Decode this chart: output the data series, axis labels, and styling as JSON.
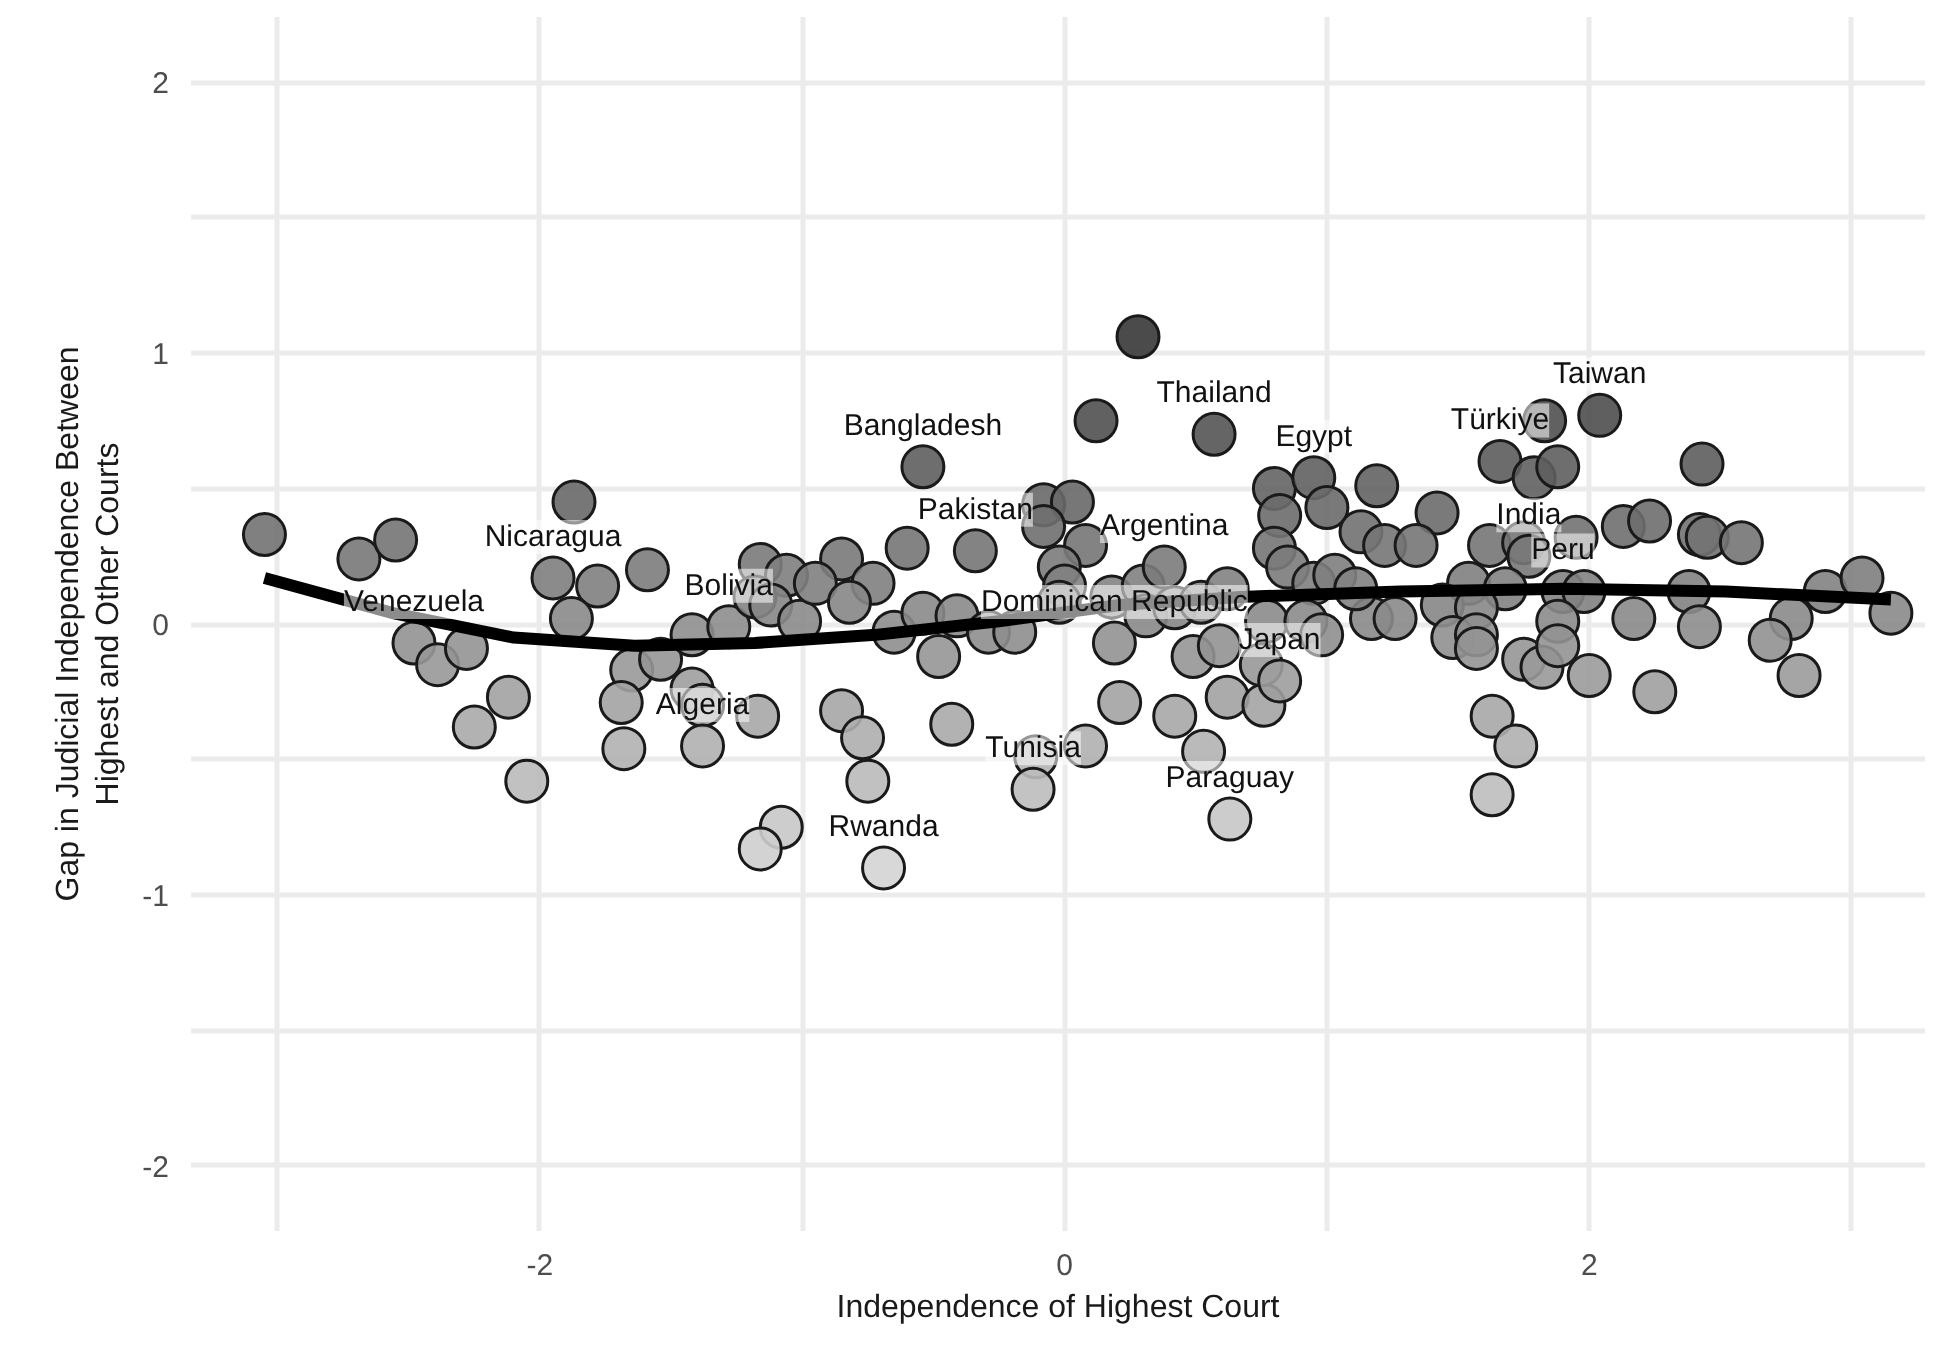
{
  "chart_data": {
    "type": "scatter",
    "xlabel": "Independence of Highest Court",
    "ylabel": "Gap in Judicial Independence Between\nHighest and Other Courts",
    "xlim": [
      -3.33,
      3.28
    ],
    "ylim": [
      -2.24,
      2.24
    ],
    "xticks": [
      {
        "value": -3,
        "label": null
      },
      -2,
      {
        "value": -1,
        "label": null
      },
      0,
      {
        "value": 1,
        "label": null
      },
      2,
      {
        "value": 3,
        "label": null
      }
    ],
    "yticks": [
      -2,
      {
        "value": -1.5,
        "label": null
      },
      -1,
      {
        "value": -0.5,
        "label": null
      },
      0,
      {
        "value": 0.5,
        "label": null
      },
      1,
      {
        "value": 1.5,
        "label": null
      },
      2
    ],
    "grid": true,
    "series": [
      {
        "marker": "circle",
        "x": [
          -3.05,
          -2.69,
          -2.55,
          -1.87,
          -1.95,
          -1.78,
          -1.88,
          -1.59,
          -2.48,
          -2.39,
          -2.28,
          -2.12,
          -2.25,
          -2.05,
          -1.65,
          -1.69,
          -1.54,
          -1.42,
          -1.42,
          -1.38,
          -1.17,
          -1.68,
          -1.38,
          -1.28,
          -1.16,
          -1.06,
          -1.18,
          -1.12,
          -1.01,
          -1.08,
          -1.16,
          0.28,
          0.12,
          0.57,
          -0.54,
          -0.08,
          0.03,
          -0.08,
          0.08,
          -0.02,
          0.0,
          -0.02,
          -0.6,
          -0.34,
          -0.85,
          -0.95,
          -0.73,
          -0.82,
          -0.65,
          -0.54,
          -0.41,
          -0.29,
          -0.19,
          -0.48,
          -0.85,
          -0.77,
          -0.43,
          -0.75,
          -0.69,
          -0.11,
          -0.12,
          0.08,
          0.19,
          0.18,
          0.3,
          0.38,
          0.31,
          0.42,
          0.52,
          0.62,
          0.21,
          0.42,
          0.49,
          0.59,
          0.53,
          0.63,
          0.62,
          0.76,
          0.75,
          0.82,
          0.77,
          0.8,
          0.95,
          1.0,
          0.82,
          0.8,
          0.85,
          0.95,
          1.03,
          0.92,
          0.98,
          1.19,
          1.42,
          1.13,
          1.22,
          1.34,
          1.62,
          1.75,
          1.77,
          1.66,
          1.79,
          1.88,
          1.83,
          2.04,
          2.43,
          1.95,
          2.13,
          2.23,
          2.42,
          2.45,
          2.58,
          1.54,
          1.68,
          1.44,
          1.57,
          1.9,
          1.98,
          2.38,
          1.88,
          2.17,
          2.42,
          2.9,
          3.04,
          3.15,
          2.77,
          2.69,
          2.8,
          1.48,
          1.57,
          1.57,
          1.75,
          1.82,
          1.88,
          2.0,
          2.25,
          1.63,
          1.72,
          1.63,
          1.17,
          1.26,
          1.11
        ],
        "values": [
          0.33,
          0.24,
          0.31,
          0.45,
          0.17,
          0.14,
          0.02,
          0.2,
          -0.07,
          -0.15,
          -0.09,
          -0.27,
          -0.38,
          -0.58,
          -0.17,
          -0.29,
          -0.13,
          -0.04,
          -0.24,
          -0.3,
          -0.34,
          -0.46,
          -0.45,
          -0.01,
          0.22,
          0.18,
          0.1,
          0.07,
          0.01,
          -0.75,
          -0.83,
          1.06,
          0.75,
          0.7,
          0.58,
          0.44,
          0.45,
          0.36,
          0.29,
          0.21,
          0.14,
          0.08,
          0.28,
          0.27,
          0.24,
          0.15,
          0.15,
          0.08,
          -0.03,
          0.04,
          0.03,
          -0.03,
          -0.03,
          -0.12,
          -0.32,
          -0.42,
          -0.37,
          -0.58,
          -0.9,
          -0.49,
          -0.61,
          -0.45,
          -0.07,
          0.1,
          0.14,
          0.21,
          0.03,
          0.06,
          0.08,
          0.13,
          -0.29,
          -0.34,
          -0.12,
          -0.08,
          -0.47,
          -0.72,
          -0.27,
          -0.3,
          -0.15,
          -0.21,
          0.01,
          0.5,
          0.54,
          0.43,
          0.4,
          0.28,
          0.21,
          0.15,
          0.18,
          0.01,
          -0.04,
          0.51,
          0.41,
          0.34,
          0.29,
          0.29,
          0.29,
          0.3,
          0.25,
          0.6,
          0.54,
          0.58,
          0.75,
          0.77,
          0.59,
          0.32,
          0.36,
          0.38,
          0.33,
          0.32,
          0.3,
          0.15,
          0.13,
          0.07,
          0.06,
          0.12,
          0.12,
          0.12,
          0.01,
          0.02,
          -0.01,
          0.12,
          0.17,
          0.04,
          0.02,
          -0.06,
          -0.19,
          -0.05,
          -0.04,
          -0.09,
          -0.13,
          -0.16,
          -0.08,
          -0.19,
          -0.25,
          -0.34,
          -0.45,
          -0.63,
          0.02,
          0.02,
          0.13
        ],
        "colors": [
          "#727272",
          "#787878",
          "#747474",
          "#686868",
          "#7e7e7e",
          "#808080",
          "#8a8a8a",
          "#7c7c7c",
          "#929292",
          "#989898",
          "#939393",
          "#a2a2a2",
          "#aaaaaa",
          "#bababa",
          "#999999",
          "#a3a3a3",
          "#969696",
          "#8f8f8f",
          "#9f9f9f",
          "#a4a4a4",
          "#a7a7a7",
          "#b1b1b1",
          "#b0b0b0",
          "#8d8d8d",
          "#7a7a7a",
          "#7e7e7e",
          "#848484",
          "#868686",
          "#8b8b8b",
          "#c8c8c8",
          "#cecece",
          "#373737",
          "#505050",
          "#545454",
          "#5e5e5e",
          "#696969",
          "#686868",
          "#6f6f6f",
          "#757575",
          "#7b7b7b",
          "#818181",
          "#868686",
          "#767676",
          "#767676",
          "#797979",
          "#808080",
          "#808080",
          "#868686",
          "#8e8e8e",
          "#898989",
          "#8a8a8a",
          "#8e8e8e",
          "#8e8e8e",
          "#969696",
          "#a6a6a6",
          "#aeaeae",
          "#aaaaaa",
          "#bababa",
          "#d4d4d4",
          "#b3b3b3",
          "#bdbdbd",
          "#b0b0b0",
          "#929292",
          "#848484",
          "#818181",
          "#7b7b7b",
          "#8a8a8a",
          "#878787",
          "#868686",
          "#828282",
          "#a3a3a3",
          "#a7a7a7",
          "#969696",
          "#929292",
          "#b2b2b2",
          "#c6c6c6",
          "#a2a2a2",
          "#a4a4a4",
          "#989898",
          "#9d9d9d",
          "#8b8b8b",
          "#646464",
          "#616161",
          "#6a6a6a",
          "#6c6c6c",
          "#767676",
          "#7b7b7b",
          "#808080",
          "#7e7e7e",
          "#8b8b8b",
          "#8f8f8f",
          "#636363",
          "#6b6b6b",
          "#717171",
          "#757575",
          "#757575",
          "#757575",
          "#747474",
          "#787878",
          "#5c5c5c",
          "#616161",
          "#5e5e5e",
          "#505050",
          "#4e4e4e",
          "#5d5d5d",
          "#727272",
          "#6f6f6f",
          "#6e6e6e",
          "#727272",
          "#727272",
          "#747474",
          "#808080",
          "#828282",
          "#868686",
          "#878787",
          "#828282",
          "#828282",
          "#828282",
          "#8b8b8b",
          "#8a8a8a",
          "#8d8d8d",
          "#828282",
          "#7e7e7e",
          "#898989",
          "#8a8a8a",
          "#919191",
          "#9b9b9b",
          "#909090",
          "#8f8f8f",
          "#939393",
          "#969696",
          "#999999",
          "#929292",
          "#9b9b9b",
          "#a0a0a0",
          "#a7a7a7",
          "#b0b0b0",
          "#bebebe",
          "#8a8a8a",
          "#8a8a8a",
          "#828282"
        ]
      },
      {
        "type": "line",
        "color": "#000000",
        "x": [
          -3.05,
          -2.56,
          -2.1,
          -1.64,
          -1.18,
          -0.72,
          -0.25,
          0.21,
          0.67,
          1.28,
          1.9,
          2.52,
          3.15
        ],
        "values": [
          0.17,
          0.04,
          -0.05,
          -0.08,
          -0.07,
          -0.04,
          0.01,
          0.07,
          0.1,
          0.12,
          0.13,
          0.12,
          0.09
        ]
      }
    ],
    "annotations": [
      {
        "text": "Nicaragua",
        "x": -1.95,
        "y": 0.17
      },
      {
        "text": "Venezuela",
        "x": -2.48,
        "y": -0.07
      },
      {
        "text": "Bangladesh",
        "x": -0.54,
        "y": 0.58
      },
      {
        "text": "Pakistan",
        "x": -0.34,
        "y": 0.27
      },
      {
        "text": "Bolivia",
        "x": -1.28,
        "y": -0.01
      },
      {
        "text": "Algeria",
        "x": -1.38,
        "y": -0.45
      },
      {
        "text": "Rwanda",
        "x": -0.69,
        "y": -0.9
      },
      {
        "text": "Tunisia",
        "x": -0.12,
        "y": -0.61
      },
      {
        "text": "Dominican Republic",
        "x": 0.19,
        "y": -0.07
      },
      {
        "text": "Thailand",
        "x": 0.57,
        "y": 0.7
      },
      {
        "text": "Egypt",
        "x": 0.95,
        "y": 0.54
      },
      {
        "text": "Argentina",
        "x": 0.38,
        "y": 0.21
      },
      {
        "text": "Paraguay",
        "x": 0.63,
        "y": -0.72
      },
      {
        "text": "Japan",
        "x": 0.82,
        "y": -0.21
      },
      {
        "text": "Türkiye",
        "x": 1.66,
        "y": 0.6
      },
      {
        "text": "Taiwan",
        "x": 2.04,
        "y": 0.77
      },
      {
        "text": "India",
        "x": 1.77,
        "y": 0.25
      },
      {
        "text": "Peru",
        "x": 1.9,
        "y": 0.12
      }
    ]
  }
}
